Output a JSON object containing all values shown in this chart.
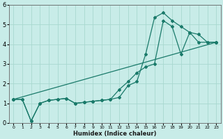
{
  "xlabel": "Humidex (Indice chaleur)",
  "bg_color": "#c8ece8",
  "grid_color": "#a8d8d0",
  "line_color": "#1a7a6a",
  "xlim": [
    -0.5,
    23.5
  ],
  "ylim": [
    0,
    6
  ],
  "xticks": [
    0,
    1,
    2,
    3,
    4,
    5,
    6,
    7,
    8,
    9,
    10,
    11,
    12,
    13,
    14,
    15,
    16,
    17,
    18,
    19,
    20,
    21,
    22,
    23
  ],
  "yticks": [
    0,
    1,
    2,
    3,
    4,
    5,
    6
  ],
  "line1_x": [
    0,
    1,
    2,
    3,
    4,
    5,
    6,
    7,
    8,
    9,
    10,
    11,
    12,
    13,
    14,
    15,
    16,
    17,
    18,
    19,
    20,
    21,
    22,
    23
  ],
  "line1_y": [
    1.2,
    1.2,
    0.1,
    1.0,
    1.15,
    1.2,
    1.25,
    1.0,
    1.05,
    1.1,
    1.15,
    1.2,
    1.3,
    1.9,
    2.1,
    3.5,
    5.35,
    5.6,
    5.2,
    4.9,
    4.6,
    4.1,
    4.1,
    4.1
  ],
  "line2_x": [
    0,
    1,
    2,
    3,
    4,
    5,
    6,
    7,
    8,
    9,
    10,
    11,
    12,
    13,
    14,
    15,
    16,
    17,
    18,
    19,
    20,
    21,
    22,
    23
  ],
  "line2_y": [
    1.2,
    1.2,
    0.1,
    1.0,
    1.15,
    1.2,
    1.25,
    1.0,
    1.05,
    1.1,
    1.15,
    1.2,
    1.7,
    2.1,
    2.55,
    2.85,
    3.0,
    5.2,
    4.9,
    3.5,
    4.6,
    4.5,
    4.1,
    4.1
  ],
  "line3_x": [
    0,
    23
  ],
  "line3_y": [
    1.2,
    4.1
  ]
}
